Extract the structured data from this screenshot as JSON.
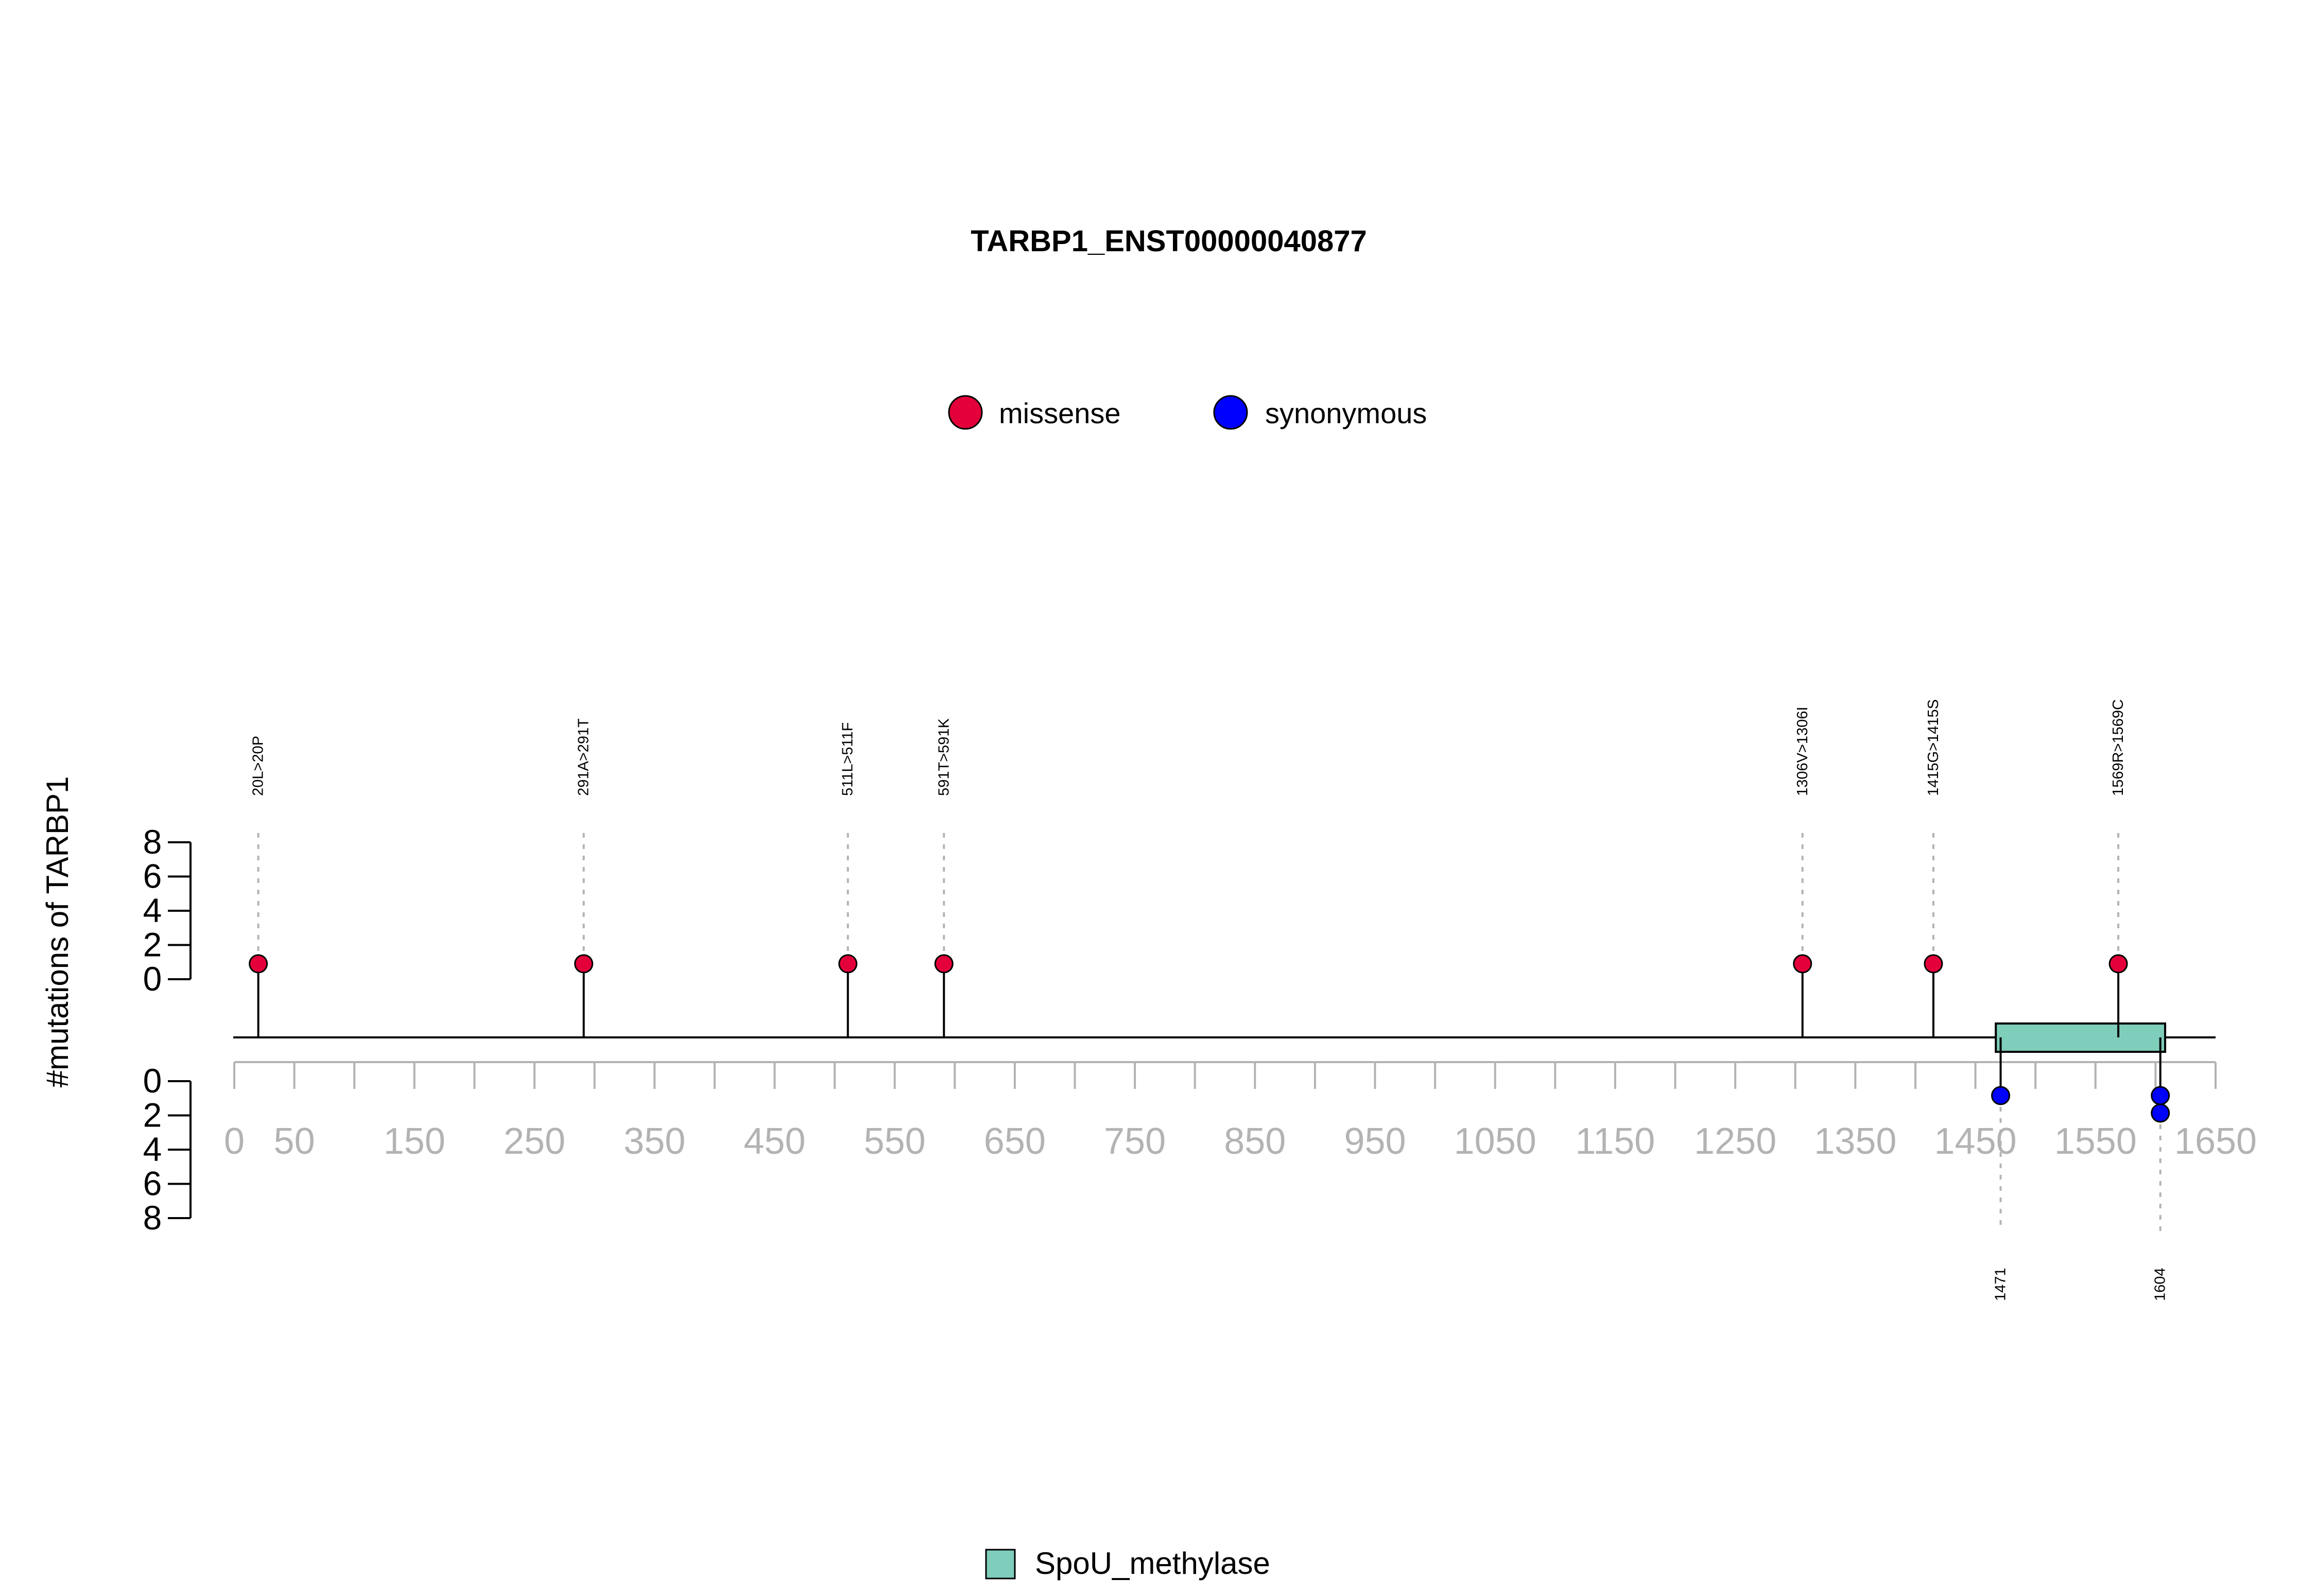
{
  "chart_data": {
    "type": "lollipop",
    "title": "TARBP1_ENST00000040877",
    "ylabel": "#mutations of TARBP1",
    "xlim": [
      0,
      1650
    ],
    "x_ticks": [
      0,
      50,
      150,
      250,
      350,
      450,
      550,
      650,
      750,
      850,
      950,
      1050,
      1150,
      1250,
      1350,
      1450,
      1550,
      1650
    ],
    "y_ticks": [
      0,
      2,
      4,
      6,
      8
    ],
    "legend": [
      {
        "name": "missense",
        "color": "#e4003a"
      },
      {
        "name": "synonymous",
        "color": "#0000ff"
      }
    ],
    "top_mutations": [
      {
        "pos": 20,
        "label": "20L>20P",
        "count": 1,
        "type": "missense"
      },
      {
        "pos": 291,
        "label": "291A>291T",
        "count": 1,
        "type": "missense"
      },
      {
        "pos": 511,
        "label": "511L>511F",
        "count": 1,
        "type": "missense"
      },
      {
        "pos": 591,
        "label": "591T>591K",
        "count": 1,
        "type": "missense"
      },
      {
        "pos": 1306,
        "label": "1306V>1306I",
        "count": 1,
        "type": "missense"
      },
      {
        "pos": 1415,
        "label": "1415G>1415S",
        "count": 1,
        "type": "missense"
      },
      {
        "pos": 1569,
        "label": "1569R>1569C",
        "count": 1,
        "type": "missense"
      }
    ],
    "bottom_mutations": [
      {
        "pos": 1471,
        "label": "1471",
        "count": 1,
        "type": "synonymous"
      },
      {
        "pos": 1604,
        "label": "1604",
        "count": 2,
        "type": "synonymous"
      }
    ],
    "domains": [
      {
        "name": "SpoU_methylase",
        "start": 1467,
        "end": 1608,
        "color": "#7fcdbb"
      }
    ]
  }
}
